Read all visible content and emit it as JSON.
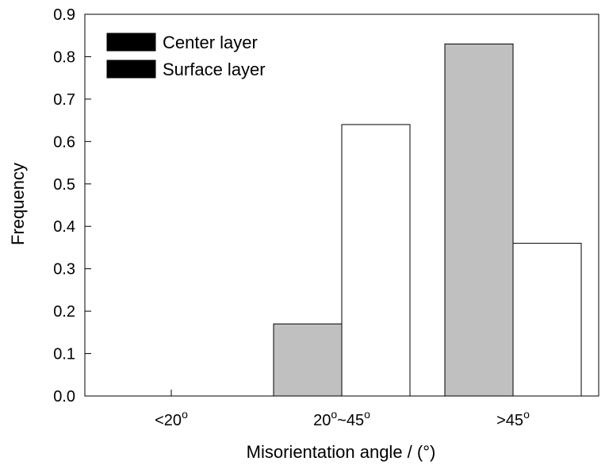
{
  "chart_data": {
    "type": "bar",
    "title": "",
    "xlabel": "Misorientation angle / (°)",
    "ylabel": "Frequency",
    "ylim": [
      0,
      0.9
    ],
    "yticks": [
      0.0,
      0.1,
      0.2,
      0.3,
      0.4,
      0.5,
      0.6,
      0.7,
      0.8,
      0.9
    ],
    "ytick_labels": [
      "0.0",
      "0.1",
      "0.2",
      "0.3",
      "0.4",
      "0.5",
      "0.6",
      "0.7",
      "0.8",
      "0.9"
    ],
    "categories": [
      "<20°",
      "20°~45°",
      ">45°"
    ],
    "series": [
      {
        "name": "Center layer",
        "values": [
          0.0,
          0.17,
          0.83
        ],
        "color": "#c0c0c0"
      },
      {
        "name": "Surface layer",
        "values": [
          0.0,
          0.64,
          0.36
        ],
        "color": "#ffffff"
      }
    ],
    "legend_position": "top-left",
    "grid": false
  }
}
